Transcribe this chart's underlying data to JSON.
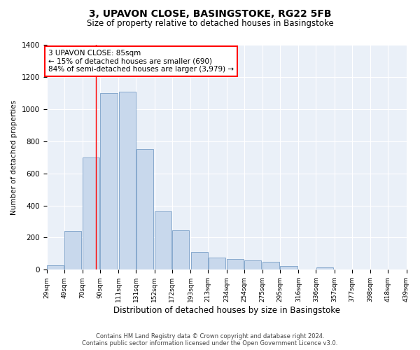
{
  "title_line1": "3, UPAVON CLOSE, BASINGSTOKE, RG22 5FB",
  "title_line2": "Size of property relative to detached houses in Basingstoke",
  "xlabel": "Distribution of detached houses by size in Basingstoke",
  "ylabel": "Number of detached properties",
  "bar_color": "#c8d8ec",
  "bar_edge_color": "#7aa0c8",
  "plot_bg_color": "#eaf0f8",
  "vline_x": 85,
  "vline_color": "red",
  "annotation_text": "3 UPAVON CLOSE: 85sqm\n← 15% of detached houses are smaller (690)\n84% of semi-detached houses are larger (3,979) →",
  "footnote_line1": "Contains HM Land Registry data © Crown copyright and database right 2024.",
  "footnote_line2": "Contains public sector information licensed under the Open Government Licence v3.0.",
  "bins_left_edges": [
    29,
    49,
    70,
    90,
    111,
    131,
    152,
    172,
    193,
    213,
    234,
    254,
    275,
    295,
    316,
    336,
    357,
    377,
    398,
    418
  ],
  "bin_width": 20,
  "bar_heights": [
    28,
    240,
    700,
    1100,
    1110,
    750,
    365,
    245,
    110,
    75,
    65,
    60,
    50,
    22,
    0,
    14,
    0,
    0,
    0,
    0
  ],
  "xlim_left": 29,
  "xlim_right": 439,
  "ylim_top": 1400,
  "ylim_bottom": 0,
  "yticks": [
    0,
    200,
    400,
    600,
    800,
    1000,
    1200,
    1400
  ],
  "xtick_labels": [
    "29sqm",
    "49sqm",
    "70sqm",
    "90sqm",
    "111sqm",
    "131sqm",
    "152sqm",
    "172sqm",
    "193sqm",
    "213sqm",
    "234sqm",
    "254sqm",
    "275sqm",
    "295sqm",
    "316sqm",
    "336sqm",
    "357sqm",
    "377sqm",
    "398sqm",
    "418sqm",
    "439sqm"
  ]
}
